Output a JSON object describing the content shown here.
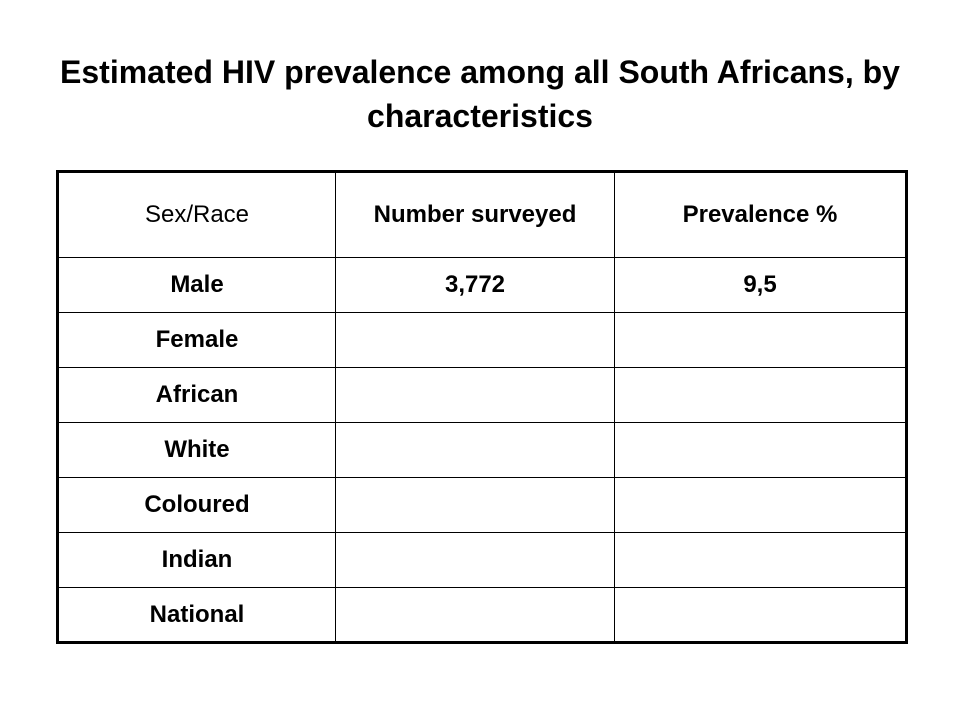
{
  "slide": {
    "title": "Estimated HIV prevalence among all South Africans, by characteristics"
  },
  "table": {
    "headers": [
      "Sex/Race",
      "Number surveyed",
      "Prevalence %"
    ],
    "rows": [
      [
        "Male",
        "3,772",
        "9,5"
      ],
      [
        "Female",
        "",
        ""
      ],
      [
        "African",
        "",
        ""
      ],
      [
        "White",
        "",
        ""
      ],
      [
        "Coloured",
        "",
        ""
      ],
      [
        "Indian",
        "",
        ""
      ],
      [
        "National",
        "",
        ""
      ]
    ]
  }
}
